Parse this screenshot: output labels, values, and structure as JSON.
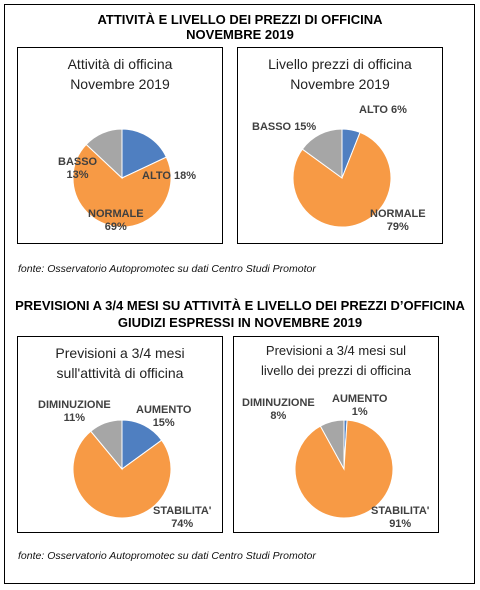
{
  "section1": {
    "title_line1": "ATTIVITÀ E LIVELLO DEI PREZZI DI OFFICINA",
    "title_line2": "NOVEMBRE 2019",
    "source": "fonte: Osservatorio Autopromotec su dati Centro Studi Promotor"
  },
  "section2": {
    "title_line1": "PREVISIONI A 3/4 MESI SU ATTIVITÀ E LIVELLO DEI PREZZI D’OFFICINA",
    "title_line2": "GIUDIZI ESPRESSI IN NOVEMBRE 2019",
    "source": "fonte: Osservatorio Autopromotec su dati Centro Studi Promotor"
  },
  "colors": {
    "blue": "#4f7fc1",
    "orange": "#f79a45",
    "gray": "#a6a6a6"
  },
  "chart_data": [
    {
      "type": "pie",
      "title_line1": "Attività di officina",
      "title_line2": "Novembre 2019",
      "slices": [
        {
          "label": "ALTO",
          "pct_label": "18%",
          "value": 18,
          "color": "#4f7fc1"
        },
        {
          "label": "NORMALE",
          "pct_label": "69%",
          "value": 69,
          "color": "#f79a45"
        },
        {
          "label": "BASSO",
          "pct_label": "13%",
          "value": 13,
          "color": "#a6a6a6"
        }
      ]
    },
    {
      "type": "pie",
      "title_line1": "Livello prezzi di officina",
      "title_line2": "Novembre 2019",
      "slices": [
        {
          "label": "ALTO",
          "pct_label": "6%",
          "value": 6,
          "color": "#4f7fc1"
        },
        {
          "label": "NORMALE",
          "pct_label": "79%",
          "value": 79,
          "color": "#f79a45"
        },
        {
          "label": "BASSO",
          "pct_label": "15%",
          "value": 15,
          "color": "#a6a6a6"
        }
      ]
    },
    {
      "type": "pie",
      "title_line1": "Previsioni a 3/4 mesi",
      "title_line2": "sull'attività di officina",
      "slices": [
        {
          "label": "AUMENTO",
          "pct_label": "15%",
          "value": 15,
          "color": "#4f7fc1"
        },
        {
          "label": "STABILITA'",
          "pct_label": "74%",
          "value": 74,
          "color": "#f79a45"
        },
        {
          "label": "DIMINUZIONE",
          "pct_label": "11%",
          "value": 11,
          "color": "#a6a6a6"
        }
      ]
    },
    {
      "type": "pie",
      "title_line1": "Previsioni a 3/4 mesi sul",
      "title_line2": "livello dei prezzi di officina",
      "slices": [
        {
          "label": "AUMENTO",
          "pct_label": "1%",
          "value": 1,
          "color": "#4f7fc1"
        },
        {
          "label": "STABILITA'",
          "pct_label": "91%",
          "value": 91,
          "color": "#f79a45"
        },
        {
          "label": "DIMINUZIONE",
          "pct_label": "8%",
          "value": 8,
          "color": "#a6a6a6"
        }
      ]
    }
  ]
}
